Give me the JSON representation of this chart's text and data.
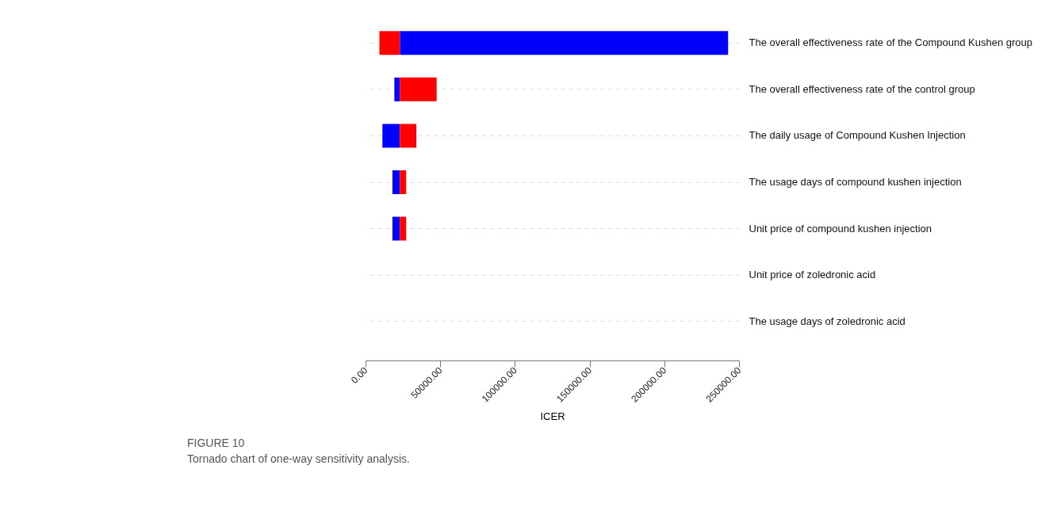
{
  "chart_data": {
    "type": "bar",
    "orientation": "horizontal",
    "categories": [
      "The overall effectiveness rate of the Compound Kushen group",
      "The overall effectiveness rate of the control group",
      "The daily usage of Compound Kushen Injection",
      "The usage days of compound kushen injection",
      "Unit price of compound kushen injection",
      "Unit price of zoledronic acid",
      "The usage days  of zoledronic acid"
    ],
    "series": [
      {
        "color": "#0000ff",
        "base": [
          23000,
          19300,
          11300,
          18000,
          18000,
          null,
          null
        ],
        "values": [
          219700,
          3700,
          11700,
          5000,
          5000,
          null,
          null
        ]
      },
      {
        "color": "#ff0000",
        "base": [
          9300,
          23000,
          23000,
          23000,
          23000,
          null,
          null
        ],
        "values": [
          13700,
          24600,
          11000,
          4200,
          4200,
          null,
          null
        ]
      }
    ],
    "xlabel": "ICER",
    "xlim": [
      0,
      250000
    ],
    "xticks": [
      {
        "value": 0,
        "label": "0.00"
      },
      {
        "value": 50000,
        "label": "50000.00"
      },
      {
        "value": 100000,
        "label": "100000.00"
      },
      {
        "value": 150000,
        "label": "150000.00"
      },
      {
        "value": 200000,
        "label": "200000.00"
      },
      {
        "value": 250000,
        "label": "250000.00"
      }
    ],
    "grid": "y",
    "annotations": [
      "FIGURE 10",
      "Tornado chart of one-way sensitivity analysis."
    ]
  }
}
